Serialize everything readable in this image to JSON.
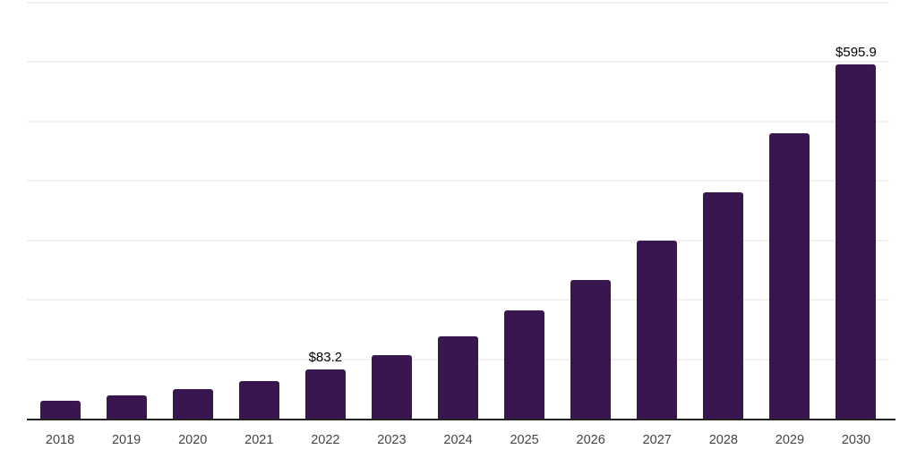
{
  "chart_data": {
    "type": "bar",
    "title": "",
    "xlabel": "",
    "ylabel": "",
    "categories": [
      "2018",
      "2019",
      "2020",
      "2021",
      "2022",
      "2023",
      "2024",
      "2025",
      "2026",
      "2027",
      "2028",
      "2029",
      "2030"
    ],
    "values": [
      30,
      39,
      50,
      63,
      83.2,
      107,
      139,
      182,
      234,
      300,
      381,
      480,
      595.9
    ],
    "data_labels": [
      "",
      "",
      "",
      "",
      "$83.2",
      "",
      "",
      "",
      "",
      "",
      "",
      "",
      "$595.9"
    ],
    "ylim": [
      0,
      700
    ],
    "gridline_step": 100,
    "grid_on": true,
    "y_tick_labels_visible": false,
    "legend": "none",
    "colors": {
      "bar": "#39164f",
      "gridline": "#f2f2f4",
      "axis_line": "#222222",
      "tick_label": "#444444",
      "data_label": "#000000",
      "background": "#ffffff"
    }
  }
}
